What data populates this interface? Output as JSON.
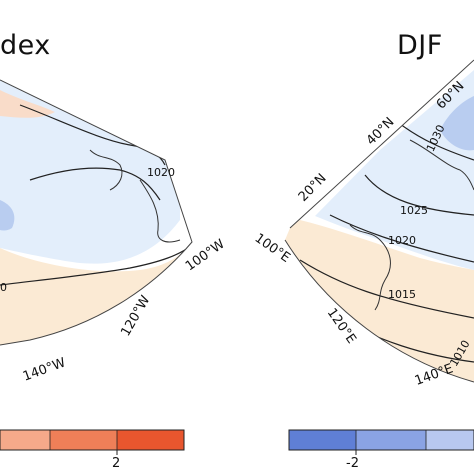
{
  "panels": {
    "left": {
      "title": "dex",
      "lat_labels": [],
      "lon_labels": [
        "100°W",
        "120°W",
        "140°W"
      ],
      "contour_labels": [
        "1020",
        "0"
      ]
    },
    "right": {
      "title": "DJF",
      "lat_labels": [
        "20°N",
        "40°N",
        "60°N"
      ],
      "lon_labels": [
        "100°E",
        "120°E",
        "140°E"
      ],
      "contour_labels": [
        "1030",
        "1025",
        "1020",
        "1015",
        "1010"
      ]
    }
  },
  "colorbars": {
    "left": {
      "tick_label": "2",
      "colors": [
        "#f5a98a",
        "#ef7f58",
        "#e8562e"
      ]
    },
    "right": {
      "tick_label": "-2",
      "colors": [
        "#5f7fd6",
        "#8aa3e4",
        "#b8c8f0"
      ]
    }
  },
  "colors": {
    "positive_light": "#f9dcc9",
    "positive_mid": "#f5b291",
    "neutral_warm": "#fbead4",
    "negative_light": "#e3eefb",
    "negative_mid": "#b9cdf0",
    "contour": "#222222",
    "land_outline": "#333333"
  }
}
